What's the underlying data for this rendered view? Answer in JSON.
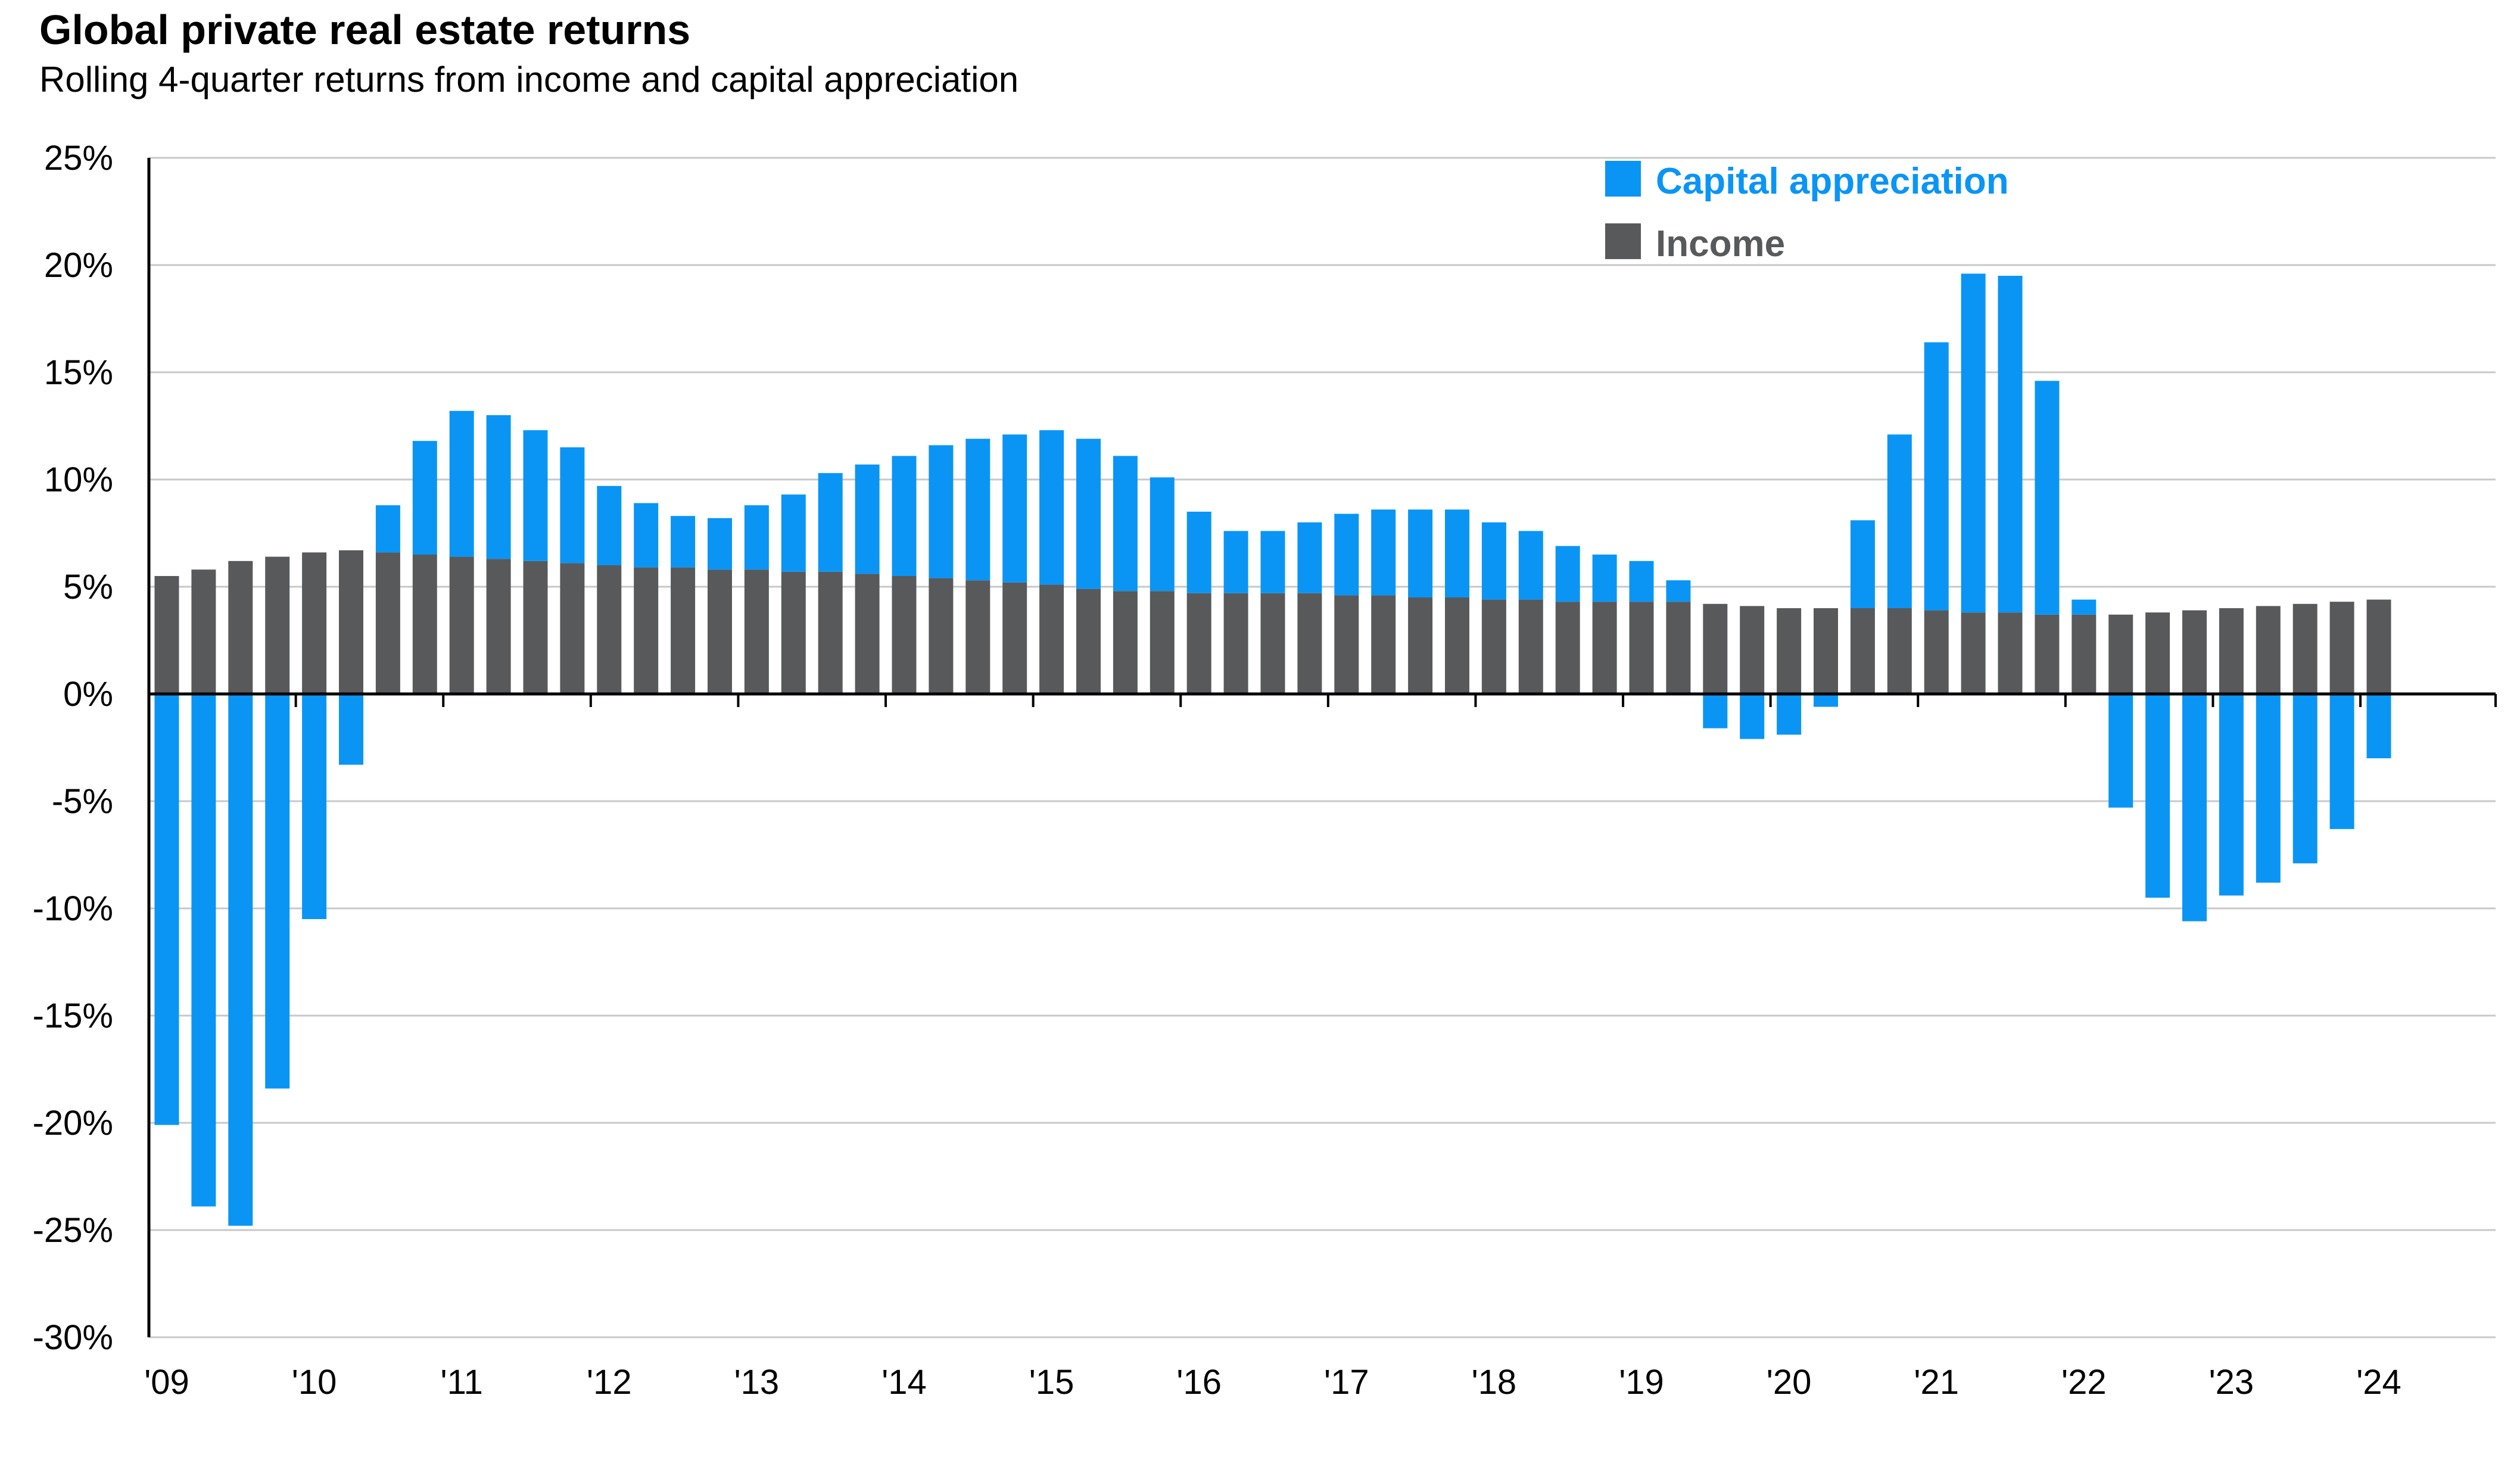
{
  "title": "Global private real estate returns",
  "subtitle": "Rolling 4-quarter returns from income and capital appreciation",
  "colors": {
    "capital": "#0a95f5",
    "income": "#58595b",
    "grid": "#c8c8c8",
    "axis": "#000000"
  },
  "chart_data": {
    "type": "bar",
    "stacked": true,
    "title": "Global private real estate returns",
    "subtitle": "Rolling 4-quarter returns from income and capital appreciation",
    "xlabel": "",
    "ylabel": "",
    "ylim": [
      -30,
      25
    ],
    "ytick_step": 5,
    "yticks": [
      "25%",
      "20%",
      "15%",
      "10%",
      "5%",
      "0%",
      "-5%",
      "-10%",
      "-15%",
      "-20%",
      "-25%",
      "-30%"
    ],
    "xticks": [
      "'09",
      "'10",
      "'11",
      "'12",
      "'13",
      "'14",
      "'15",
      "'16",
      "'17",
      "'18",
      "'19",
      "'20",
      "'21",
      "'22",
      "'23",
      "'24"
    ],
    "periods_per_tick": 4,
    "grid": true,
    "legend": "top-center",
    "series": [
      {
        "name": "Capital appreciation",
        "color": "#0a95f5",
        "values": [
          -20.1,
          -23.9,
          -24.8,
          -18.4,
          -10.5,
          -3.3,
          2.2,
          5.3,
          6.8,
          6.7,
          6.1,
          5.4,
          3.7,
          3.0,
          2.4,
          2.4,
          3.0,
          3.6,
          4.6,
          5.1,
          5.6,
          6.2,
          6.6,
          6.9,
          7.2,
          7.0,
          6.3,
          5.3,
          3.8,
          2.9,
          2.9,
          3.3,
          3.8,
          4.0,
          4.1,
          4.1,
          3.6,
          3.2,
          2.6,
          2.2,
          1.9,
          1.0,
          -1.6,
          -2.1,
          -1.9,
          -0.6,
          4.1,
          8.1,
          12.5,
          15.8,
          15.7,
          10.9,
          0.7,
          -5.3,
          -9.5,
          -10.6,
          -9.4,
          -8.8,
          -7.9,
          -6.3,
          -3.0
        ],
        "positive_only_from_index": 6
      },
      {
        "name": "Income",
        "color": "#58595b",
        "values": [
          5.5,
          5.8,
          6.2,
          6.4,
          6.6,
          6.7,
          6.6,
          6.5,
          6.4,
          6.3,
          6.2,
          6.1,
          6.0,
          5.9,
          5.9,
          5.8,
          5.8,
          5.7,
          5.7,
          5.6,
          5.5,
          5.4,
          5.3,
          5.2,
          5.1,
          4.9,
          4.8,
          4.8,
          4.7,
          4.7,
          4.7,
          4.7,
          4.6,
          4.6,
          4.5,
          4.5,
          4.4,
          4.4,
          4.3,
          4.3,
          4.3,
          4.3,
          4.2,
          4.1,
          4.0,
          4.0,
          4.0,
          4.0,
          3.9,
          3.8,
          3.8,
          3.7,
          3.7,
          3.7,
          3.8,
          3.9,
          4.0,
          4.1,
          4.2,
          4.3,
          4.4
        ]
      }
    ],
    "legend_labels": [
      "Capital appreciation",
      "Income"
    ]
  }
}
